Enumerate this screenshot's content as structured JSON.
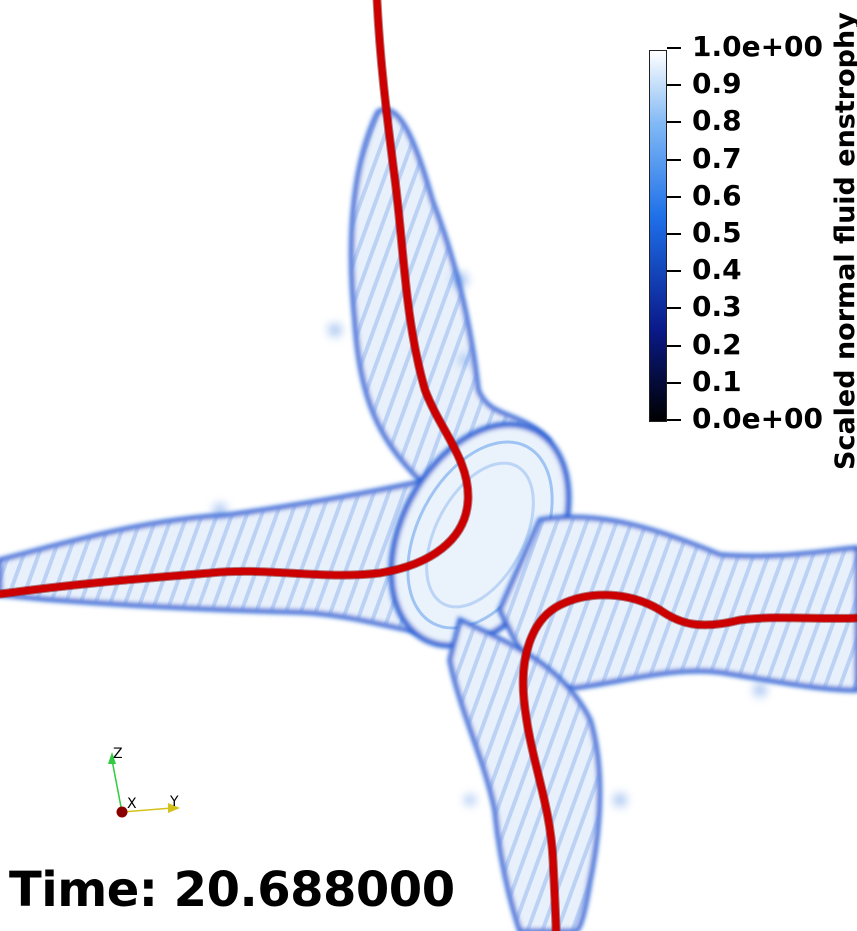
{
  "scene": {
    "time_label": "Time: 20.688000"
  },
  "legend": {
    "title": "Scaled normal fluid enstrophy",
    "ticks": [
      "1.0e+00",
      "0.9",
      "0.8",
      "0.7",
      "0.6",
      "0.5",
      "0.4",
      "0.3",
      "0.2",
      "0.1",
      "0.0e+00"
    ],
    "colors": {
      "low": "#000000",
      "mid_low": "#0a1a8a",
      "mid": "#1e6fe8",
      "mid_high": "#7fb8f5",
      "high": "#ffffff"
    }
  },
  "axes": {
    "z_label": "Z",
    "x_label": "X",
    "y_label": "Y"
  },
  "colors": {
    "vortex_line": "#cc0000",
    "tube_fill": "#e8f0fb",
    "tube_edge": "#2a64d6"
  }
}
